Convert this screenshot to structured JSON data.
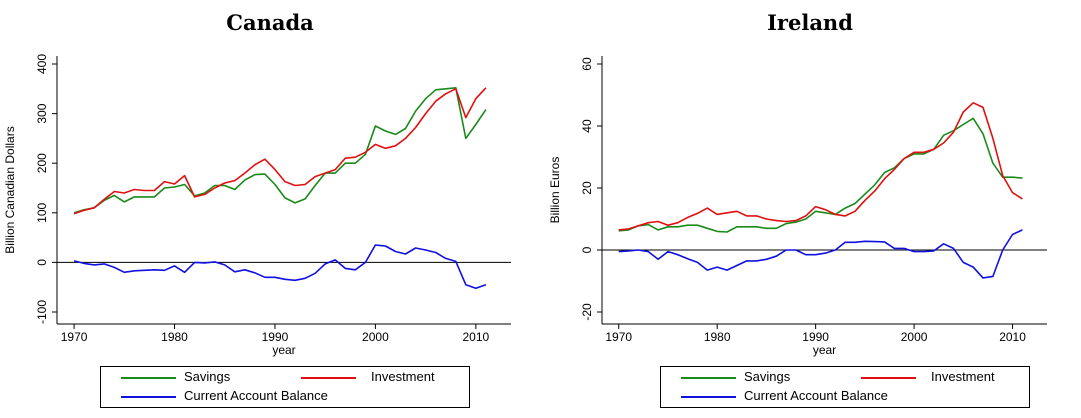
{
  "chart_data": [
    {
      "type": "line",
      "title": "Canada",
      "xlabel": "year",
      "ylabel": "Billion Canadian Dollars",
      "xlim": [
        1970,
        2011
      ],
      "ylim": [
        -100,
        400
      ],
      "xticks": [
        "1970",
        "1980",
        "1990",
        "2000",
        "2010"
      ],
      "yticks": [
        "-100",
        "0",
        "100",
        "200",
        "300",
        "400"
      ],
      "x": [
        1970,
        1971,
        1972,
        1973,
        1974,
        1975,
        1976,
        1977,
        1978,
        1979,
        1980,
        1981,
        1982,
        1983,
        1984,
        1985,
        1986,
        1987,
        1988,
        1989,
        1990,
        1991,
        1992,
        1993,
        1994,
        1995,
        1996,
        1997,
        1998,
        1999,
        2000,
        2001,
        2002,
        2003,
        2004,
        2005,
        2006,
        2007,
        2008,
        2009,
        2010,
        2011
      ],
      "series": [
        {
          "name": "Savings",
          "color": "#1a8a1a",
          "values": [
            100,
            106,
            110,
            125,
            135,
            122,
            132,
            132,
            132,
            150,
            152,
            157,
            134,
            140,
            155,
            155,
            147,
            166,
            177,
            178,
            157,
            130,
            120,
            128,
            155,
            180,
            180,
            200,
            200,
            218,
            275,
            265,
            258,
            270,
            305,
            330,
            348,
            350,
            352,
            250,
            278,
            308
          ]
        },
        {
          "name": "Investment",
          "color": "#e01010",
          "values": [
            98,
            105,
            110,
            127,
            143,
            140,
            147,
            145,
            145,
            163,
            158,
            175,
            132,
            137,
            150,
            160,
            165,
            180,
            197,
            208,
            187,
            163,
            155,
            157,
            173,
            180,
            187,
            210,
            212,
            222,
            238,
            230,
            235,
            250,
            272,
            300,
            325,
            340,
            350,
            292,
            330,
            352
          ]
        },
        {
          "name": "Current Account Balance",
          "color": "#1010e0",
          "values": [
            3,
            -2,
            -5,
            -3,
            -10,
            -20,
            -17,
            -16,
            -15,
            -16,
            -7,
            -20,
            0,
            -1,
            1,
            -5,
            -19,
            -15,
            -21,
            -30,
            -30,
            -34,
            -36,
            -32,
            -22,
            -3,
            5,
            -12,
            -15,
            0,
            35,
            33,
            22,
            17,
            29,
            25,
            20,
            8,
            2,
            -45,
            -52,
            -45
          ]
        }
      ],
      "legend": "bottom"
    },
    {
      "type": "line",
      "title": "Ireland",
      "xlabel": "year",
      "ylabel": "Billion Euros",
      "xlim": [
        1970,
        2011
      ],
      "ylim": [
        -20,
        60
      ],
      "xticks": [
        "1970",
        "1980",
        "1990",
        "2000",
        "2010"
      ],
      "yticks": [
        "-20",
        "0",
        "20",
        "40",
        "60"
      ],
      "x": [
        1970,
        1971,
        1972,
        1973,
        1974,
        1975,
        1976,
        1977,
        1978,
        1979,
        1980,
        1981,
        1982,
        1983,
        1984,
        1985,
        1986,
        1987,
        1988,
        1989,
        1990,
        1991,
        1992,
        1993,
        1994,
        1995,
        1996,
        1997,
        1998,
        1999,
        2000,
        2001,
        2002,
        2003,
        2004,
        2005,
        2006,
        2007,
        2008,
        2009,
        2010,
        2011
      ],
      "series": [
        {
          "name": "Savings",
          "color": "#1a8a1a",
          "values": [
            6.2,
            6.5,
            7.8,
            8.2,
            6.5,
            7.5,
            7.5,
            8,
            8,
            7,
            6,
            5.8,
            7.5,
            7.5,
            7.5,
            7,
            7,
            8.5,
            9,
            10,
            12.5,
            12,
            11.5,
            13.5,
            15,
            18,
            21,
            25,
            26.5,
            29.5,
            31,
            31,
            32.5,
            37,
            38.5,
            40.5,
            42.5,
            37.5,
            28,
            23.5,
            23.5,
            23.2
          ]
        },
        {
          "name": "Investment",
          "color": "#e01010",
          "values": [
            6.5,
            6.8,
            7.8,
            8.8,
            9.2,
            8,
            8.8,
            10.5,
            11.8,
            13.5,
            11.5,
            12,
            12.5,
            11,
            11,
            10,
            9.5,
            9.2,
            9.5,
            11,
            14,
            13,
            11.5,
            11,
            12.5,
            16,
            19,
            23,
            26,
            29.5,
            31.5,
            31.5,
            32.5,
            34.5,
            38,
            44.5,
            47.5,
            46,
            36,
            24,
            18.5,
            16.5
          ]
        },
        {
          "name": "Current Account Balance",
          "color": "#1010e0",
          "values": [
            -0.5,
            -0.3,
            0,
            -0.5,
            -3,
            -0.5,
            -1.5,
            -2.8,
            -4,
            -6.5,
            -5.5,
            -6.5,
            -5,
            -3.5,
            -3.5,
            -3,
            -2,
            0,
            0,
            -1.5,
            -1.5,
            -1,
            0,
            2.5,
            2.5,
            2.8,
            2.7,
            2.6,
            0.5,
            0.5,
            -0.5,
            -0.5,
            -0.3,
            2,
            0.5,
            -4,
            -5.5,
            -9,
            -8.5,
            0,
            5,
            6.5
          ]
        }
      ],
      "legend": "bottom"
    }
  ]
}
